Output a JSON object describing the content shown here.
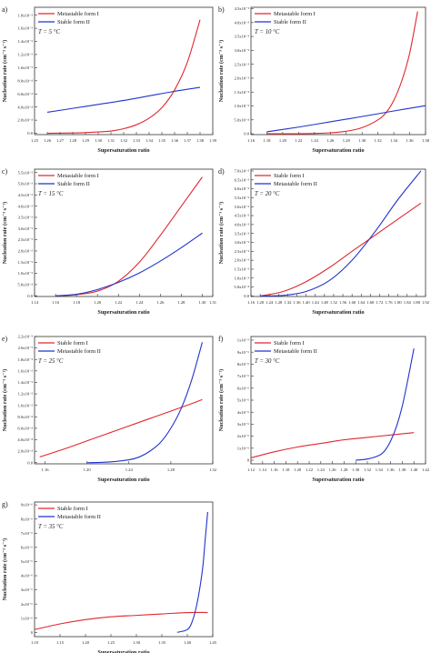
{
  "figure": {
    "panels": [
      {
        "id": "a",
        "letter": "a)",
        "temp": "T = 5 °C"
      },
      {
        "id": "b",
        "letter": "b)",
        "temp": "T = 10 °C"
      },
      {
        "id": "c",
        "letter": "c)",
        "temp": "T = 15 °C"
      },
      {
        "id": "d",
        "letter": "d)",
        "temp": "T = 20 °C"
      },
      {
        "id": "e",
        "letter": "e)",
        "temp": "T = 25 °C"
      },
      {
        "id": "f",
        "letter": "f)",
        "temp": "T = 30 °C"
      },
      {
        "id": "g",
        "letter": "g)",
        "temp": "T = 35 °C"
      }
    ]
  },
  "colors": {
    "red": "#e0282e",
    "blue": "#2233cc"
  },
  "chart_data": [
    {
      "id": "a",
      "type": "line",
      "xlabel": "Supersaturation ratio",
      "ylabel": "Nucleation rate (cm⁻³ s⁻¹)",
      "xlim": [
        1.25,
        1.39
      ],
      "ylim": [
        -2e-05,
        0.00192
      ],
      "xticks": [
        1.25,
        1.26,
        1.27,
        1.28,
        1.29,
        1.3,
        1.31,
        1.32,
        1.33,
        1.34,
        1.35,
        1.36,
        1.37,
        1.38,
        1.39
      ],
      "xticklabels": [
        "1.25",
        "1.26",
        "1.27",
        "1.28",
        "1.29",
        "1.30",
        "1.31",
        "1.32",
        "1.33",
        "1.34",
        "1.35",
        "1.36",
        "1.37",
        "1.38",
        "1.39"
      ],
      "yticks": [
        0,
        0.0002,
        0.0004,
        0.0006,
        0.0008,
        0.001,
        0.0012,
        0.0014,
        0.0016,
        0.0018
      ],
      "yticklabels": [
        "0.0",
        "2.0x10⁻⁴",
        "4.0x10⁻⁴",
        "6.0x10⁻⁴",
        "8.0x10⁻⁴",
        "1.0x10⁻³",
        "1.2x10⁻³",
        "1.4x10⁻³",
        "1.6x10⁻³",
        "1.8x10⁻³"
      ],
      "legend": [
        "Metastable form I",
        "Stable form II"
      ],
      "series": [
        {
          "name": "Metastable form I",
          "color": "red",
          "x": [
            1.26,
            1.27,
            1.28,
            1.29,
            1.3,
            1.31,
            1.32,
            1.33,
            1.34,
            1.35,
            1.36,
            1.37,
            1.38
          ],
          "y": [
            0.0,
            2e-06,
            5e-06,
            1e-05,
            2e-05,
            3.5e-05,
            7e-05,
            0.00013,
            0.00023,
            0.00039,
            0.00066,
            0.00108,
            0.00173
          ]
        },
        {
          "name": "Stable form II",
          "color": "blue",
          "x": [
            1.26,
            1.28,
            1.3,
            1.32,
            1.34,
            1.36,
            1.38
          ],
          "y": [
            0.00032,
            0.00038,
            0.00044,
            0.0005,
            0.00057,
            0.00064,
            0.0007
          ]
        }
      ]
    },
    {
      "id": "b",
      "type": "line",
      "xlabel": "Supersaturation ratio",
      "ylabel": "Nucleation rate (cm⁻³ s⁻¹)",
      "xlim": [
        1.16,
        1.38
      ],
      "ylim": [
        -3e-05,
        0.00455
      ],
      "xticks": [
        1.16,
        1.18,
        1.2,
        1.22,
        1.24,
        1.26,
        1.28,
        1.3,
        1.32,
        1.34,
        1.36,
        1.38
      ],
      "xticklabels": [
        "1.16",
        "1.18",
        "1.20",
        "1.22",
        "1.24",
        "1.26",
        "1.28",
        "1.30",
        "1.32",
        "1.34",
        "1.36",
        "1.38"
      ],
      "yticks": [
        0,
        0.0005,
        0.001,
        0.0015,
        0.002,
        0.0025,
        0.003,
        0.0035,
        0.004,
        0.0045
      ],
      "yticklabels": [
        "0.0",
        "5.0x10⁻⁴",
        "1.0x10⁻³",
        "1.5x10⁻³",
        "2.0x10⁻³",
        "2.5x10⁻³",
        "3.0x10⁻³",
        "3.5x10⁻³",
        "4.0x10⁻³",
        "4.5x10⁻³"
      ],
      "legend": [
        "Metastable form I",
        "Stable form II"
      ],
      "series": [
        {
          "name": "Metastable form I",
          "color": "red",
          "x": [
            1.18,
            1.2,
            1.22,
            1.24,
            1.26,
            1.28,
            1.3,
            1.32,
            1.33,
            1.34,
            1.35,
            1.36,
            1.37
          ],
          "y": [
            0.0,
            5e-07,
            3e-06,
            1.2e-05,
            3.5e-05,
            9e-05,
            0.00022,
            0.0005,
            0.00075,
            0.0012,
            0.0019,
            0.0029,
            0.0044
          ]
        },
        {
          "name": "Stable form II",
          "color": "blue",
          "x": [
            1.18,
            1.22,
            1.26,
            1.3,
            1.34,
            1.38
          ],
          "y": [
            7e-05,
            0.00024,
            0.00043,
            0.00062,
            0.00082,
            0.00101
          ]
        }
      ]
    },
    {
      "id": "c",
      "type": "line",
      "xlabel": "Supersaturation ratio",
      "ylabel": "Nucleation rate (cm⁻³ s⁻¹)",
      "xlim": [
        1.14,
        1.31
      ],
      "ylim": [
        -3e-05,
        0.00565
      ],
      "xticks": [
        1.14,
        1.16,
        1.18,
        1.2,
        1.22,
        1.24,
        1.26,
        1.28,
        1.3,
        1.31
      ],
      "xticklabels": [
        "1.14",
        "1.16",
        "1.18",
        "1.20",
        "1.22",
        "1.24",
        "1.26",
        "1.28",
        "1.30",
        "1.31"
      ],
      "yticks": [
        0,
        0.0005,
        0.001,
        0.0015,
        0.002,
        0.0025,
        0.003,
        0.0035,
        0.004,
        0.0045,
        0.005,
        0.0055
      ],
      "yticklabels": [
        "0.0",
        "5.0x10⁻⁴",
        "1.0x10⁻³",
        "1.5x10⁻³",
        "2.0x10⁻³",
        "2.5x10⁻³",
        "3.0x10⁻³",
        "3.5x10⁻³",
        "4.0x10⁻³",
        "4.5x10⁻³",
        "5.0x10⁻³",
        "5.5x10⁻³"
      ],
      "legend": [
        "Metastable form I",
        "Stable form II"
      ],
      "series": [
        {
          "name": "Metastable form I",
          "color": "red",
          "x": [
            1.16,
            1.18,
            1.2,
            1.22,
            1.24,
            1.26,
            1.28,
            1.3
          ],
          "y": [
            0.0,
            5e-05,
            0.00021,
            0.00065,
            0.0015,
            0.0027,
            0.004,
            0.0053
          ]
        },
        {
          "name": "Stable form II",
          "color": "blue",
          "x": [
            1.16,
            1.18,
            1.2,
            1.22,
            1.24,
            1.26,
            1.28,
            1.3
          ],
          "y": [
            0.0,
            7e-05,
            0.00028,
            0.0006,
            0.00102,
            0.00155,
            0.00215,
            0.0028
          ]
        }
      ]
    },
    {
      "id": "d",
      "type": "line",
      "xlabel": "Supersaturation ratio",
      "ylabel": "Nucleation rate (cm⁻³ s⁻¹)",
      "xlim": [
        1.16,
        1.92
      ],
      "ylim": [
        -3e-05,
        0.0071
      ],
      "xticks": [
        1.16,
        1.2,
        1.24,
        1.28,
        1.32,
        1.36,
        1.4,
        1.44,
        1.48,
        1.52,
        1.56,
        1.6,
        1.64,
        1.68,
        1.72,
        1.76,
        1.8,
        1.84,
        1.88,
        1.92
      ],
      "xticklabels": [
        "1.16",
        "1.20",
        "1.24",
        "1.28",
        "1.32",
        "1.36",
        "1.40",
        "1.44",
        "1.48",
        "1.52",
        "1.56",
        "1.60",
        "1.64",
        "1.68",
        "1.72",
        "1.76",
        "1.80",
        "1.84",
        "1.88",
        "1.92"
      ],
      "yticks": [
        0,
        0.0005,
        0.001,
        0.0015,
        0.002,
        0.0025,
        0.003,
        0.0035,
        0.004,
        0.0045,
        0.005,
        0.0055,
        0.006,
        0.0065,
        0.007
      ],
      "yticklabels": [
        "0.0",
        "5.0x10⁻⁴",
        "1.0x10⁻³",
        "1.5x10⁻³",
        "2.0x10⁻³",
        "2.5x10⁻³",
        "3.0x10⁻³",
        "3.5x10⁻³",
        "4.0x10⁻³",
        "4.5x10⁻³",
        "5.0x10⁻³",
        "5.5x10⁻³",
        "6.0x10⁻³",
        "6.5x10⁻³",
        "7.0x10⁻³"
      ],
      "legend": [
        "Stable form I",
        "Metastable form II"
      ],
      "series": [
        {
          "name": "Stable form I",
          "color": "red",
          "x": [
            1.2,
            1.3,
            1.4,
            1.5,
            1.6,
            1.7,
            1.8,
            1.9
          ],
          "y": [
            0.0,
            0.00025,
            0.0008,
            0.00158,
            0.0025,
            0.0034,
            0.0043,
            0.0052
          ]
        },
        {
          "name": "Metastable form II",
          "color": "blue",
          "x": [
            1.2,
            1.3,
            1.4,
            1.5,
            1.6,
            1.7,
            1.8,
            1.9
          ],
          "y": [
            0.0,
            3e-05,
            0.00025,
            0.00085,
            0.002,
            0.0036,
            0.0054,
            0.007
          ]
        }
      ]
    },
    {
      "id": "e",
      "type": "line",
      "xlabel": "Supersaturation ratio",
      "ylabel": "Nucleation rate (cm⁻³ s⁻¹)",
      "xlim": [
        1.15,
        1.32
      ],
      "ylim": [
        -2e-05,
        0.0022
      ],
      "xticks": [
        1.16,
        1.2,
        1.24,
        1.28,
        1.32
      ],
      "xticklabels": [
        "1.16",
        "1.20",
        "1.24",
        "1.28",
        "1.32"
      ],
      "yticks": [
        0,
        0.0002,
        0.0004,
        0.0006,
        0.0008,
        0.001,
        0.0012,
        0.0014,
        0.0016,
        0.0018,
        0.002,
        0.0022
      ],
      "yticklabels": [
        "0.0",
        "2.0x10⁻⁴",
        "4.0x10⁻⁴",
        "6.0x10⁻⁴",
        "8.0x10⁻⁴",
        "1.0x10⁻³",
        "1.2x10⁻³",
        "1.4x10⁻³",
        "1.6x10⁻³",
        "1.8x10⁻³",
        "2.0x10⁻³",
        "2.2x10⁻³"
      ],
      "legend": [
        "Stable form I",
        "Metastable form II"
      ],
      "series": [
        {
          "name": "Stable form I",
          "color": "red",
          "x": [
            1.155,
            1.18,
            1.2,
            1.22,
            1.24,
            1.26,
            1.28,
            1.3,
            1.31
          ],
          "y": [
            0.0001,
            0.00025,
            0.00038,
            0.00051,
            0.00064,
            0.00077,
            0.0009,
            0.00103,
            0.0011
          ]
        },
        {
          "name": "Metastable form II",
          "color": "blue",
          "x": [
            1.2,
            1.22,
            1.24,
            1.25,
            1.26,
            1.27,
            1.28,
            1.29,
            1.3,
            1.31
          ],
          "y": [
            0.0,
            1e-05,
            5e-05,
            0.0001,
            0.0002,
            0.00035,
            0.0006,
            0.00095,
            0.00145,
            0.0021
          ]
        }
      ]
    },
    {
      "id": "f",
      "type": "line",
      "xlabel": "Supersaturation ratio",
      "ylabel": "Nucleation rate (cm⁻³ s⁻¹)",
      "xlim": [
        1.12,
        1.42
      ],
      "ylim": [
        -3e-07,
        1.03e-05
      ],
      "xticks": [
        1.12,
        1.14,
        1.16,
        1.18,
        1.2,
        1.22,
        1.24,
        1.26,
        1.28,
        1.3,
        1.32,
        1.34,
        1.36,
        1.38,
        1.4,
        1.42
      ],
      "xticklabels": [
        "1.12",
        "1.14",
        "1.16",
        "1.18",
        "1.20",
        "1.22",
        "1.24",
        "1.26",
        "1.28",
        "1.30",
        "1.32",
        "1.34",
        "1.36",
        "1.38",
        "1.40",
        "1.42"
      ],
      "yticks": [
        0,
        1e-06,
        2e-06,
        3e-06,
        4e-06,
        5e-06,
        6e-06,
        7e-06,
        8e-06,
        9e-06,
        1e-05
      ],
      "yticklabels": [
        "0",
        "1x10⁻⁶",
        "2x10⁻⁶",
        "3x10⁻⁶",
        "4x10⁻⁶",
        "5x10⁻⁶",
        "6x10⁻⁶",
        "7x10⁻⁶",
        "8x10⁻⁶",
        "9x10⁻⁶",
        "1x10⁻⁵"
      ],
      "legend": [
        "Stable form I",
        "Metastable form II"
      ],
      "series": [
        {
          "name": "Stable form I",
          "color": "red",
          "x": [
            1.12,
            1.16,
            1.2,
            1.24,
            1.28,
            1.32,
            1.36,
            1.4
          ],
          "y": [
            2e-07,
            7e-07,
            1.1e-06,
            1.4e-06,
            1.7e-06,
            1.9e-06,
            2.1e-06,
            2.3e-06
          ]
        },
        {
          "name": "Metastable form II",
          "color": "blue",
          "x": [
            1.3,
            1.32,
            1.34,
            1.35,
            1.36,
            1.37,
            1.38,
            1.39,
            1.4
          ],
          "y": [
            0.0,
            1e-07,
            4e-07,
            8e-07,
            1.6e-06,
            2.8e-06,
            4.5e-06,
            6.8e-06,
            9.3e-06
          ]
        }
      ]
    },
    {
      "id": "g",
      "type": "line",
      "xlabel": "Supersaturation ratio",
      "ylabel": "Nucleation rate (cm⁻³ s⁻¹)",
      "xlim": [
        1.1,
        1.45
      ],
      "ylim": [
        -3e-07,
        9.2e-06
      ],
      "xticks": [
        1.1,
        1.15,
        1.2,
        1.25,
        1.3,
        1.35,
        1.4,
        1.45
      ],
      "xticklabels": [
        "1.10",
        "1.15",
        "1.20",
        "1.25",
        "1.30",
        "1.35",
        "1.40",
        "1.45"
      ],
      "yticks": [
        0,
        1e-06,
        2e-06,
        3e-06,
        4e-06,
        5e-06,
        6e-06,
        7e-06,
        8e-06,
        9e-06
      ],
      "yticklabels": [
        "0",
        "1x10⁻⁶",
        "2x10⁻⁶",
        "3x10⁻⁶",
        "4x10⁻⁶",
        "5x10⁻⁶",
        "6x10⁻⁶",
        "7x10⁻⁶",
        "8x10⁻⁶",
        "9x10⁻⁶"
      ],
      "legend": [
        "Stable form I",
        "Metastable form II"
      ],
      "series": [
        {
          "name": "Stable form I",
          "color": "red",
          "x": [
            1.1,
            1.15,
            1.2,
            1.25,
            1.3,
            1.35,
            1.4,
            1.44
          ],
          "y": [
            2e-07,
            6e-07,
            9e-07,
            1.1e-06,
            1.2e-06,
            1.3e-06,
            1.4e-06,
            1.4e-06
          ]
        },
        {
          "name": "Metastable form II",
          "color": "blue",
          "x": [
            1.38,
            1.4,
            1.41,
            1.42,
            1.43,
            1.435,
            1.44
          ],
          "y": [
            0.0,
            2e-07,
            8e-07,
            2.2e-06,
            4.5e-06,
            6.5e-06,
            8.5e-06
          ]
        }
      ]
    }
  ]
}
